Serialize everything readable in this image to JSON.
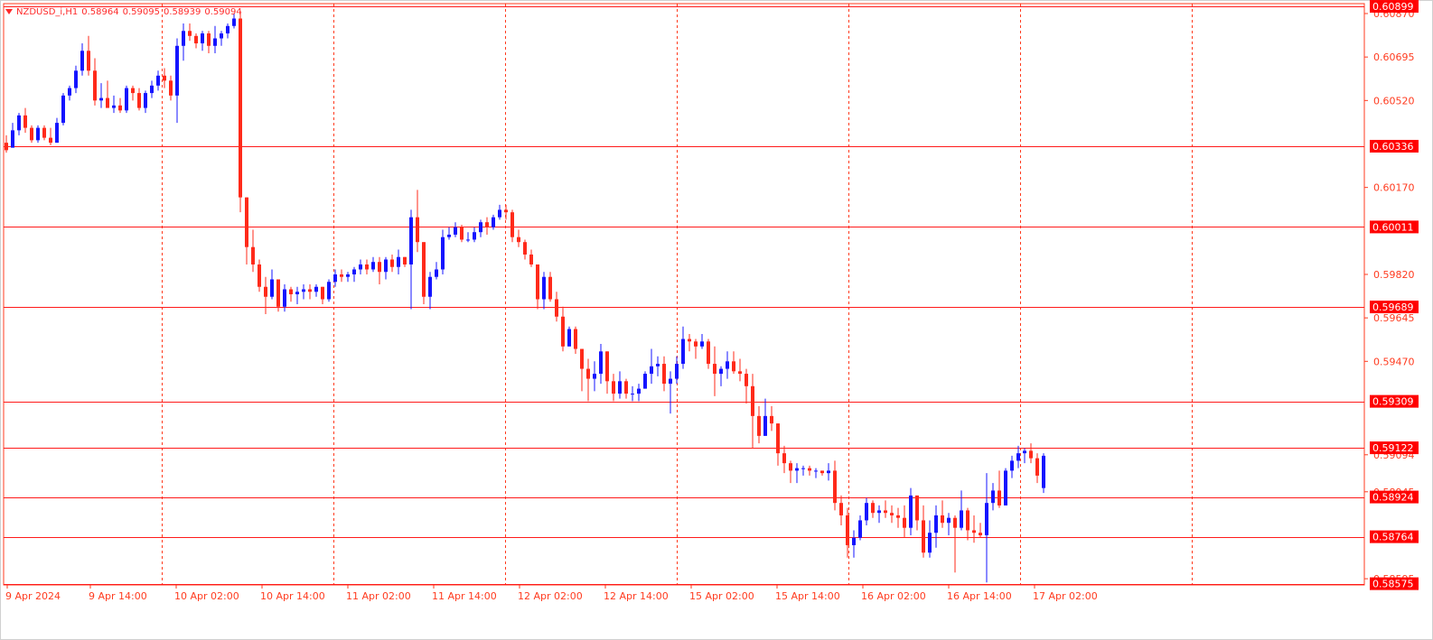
{
  "info": {
    "symbol": "NZDUSD_i,H1",
    "open": "0.58964",
    "high": "0.59095",
    "low": "0.58939",
    "close": "0.59094"
  },
  "colors": {
    "bull": "#1414ff",
    "bear": "#ff2a1a",
    "grid": "#ff3b1f",
    "axis_text": "#ff3b1f",
    "label_bg": "#ff0000",
    "label_text": "#ffffff",
    "background": "#ffffff"
  },
  "chart_data": {
    "type": "candlestick",
    "ylim": [
      0.5857,
      0.6091
    ],
    "y_ticks": [
      "0.60870",
      "0.60695",
      "0.60520",
      "0.60170",
      "0.59820",
      "0.59645",
      "0.59470",
      "0.59094",
      "0.58945",
      "0.58595"
    ],
    "x_labels": [
      "9 Apr 2024",
      "9 Apr 14:00",
      "10 Apr 02:00",
      "10 Apr 14:00",
      "11 Apr 02:00",
      "11 Apr 14:00",
      "12 Apr 02:00",
      "12 Apr 14:00",
      "15 Apr 02:00",
      "15 Apr 14:00",
      "16 Apr 02:00",
      "16 Apr 14:00",
      "17 Apr 02:00"
    ],
    "levels": [
      0.60899,
      0.60336,
      0.60011,
      0.59689,
      0.59309,
      0.59122,
      0.58924,
      0.58764,
      0.58575
    ],
    "level_labels": [
      "0.60899",
      "0.60336",
      "0.60011",
      "0.59689",
      "0.59309",
      "0.59122",
      "0.58924",
      "0.58764",
      "0.58575"
    ],
    "candles": [
      [
        0.6035,
        0.6038,
        0.6031,
        0.6032
      ],
      [
        0.6033,
        0.6043,
        0.6033,
        0.604
      ],
      [
        0.604,
        0.6047,
        0.6038,
        0.6046
      ],
      [
        0.6046,
        0.6049,
        0.6039,
        0.6041
      ],
      [
        0.6041,
        0.6042,
        0.6035,
        0.6036
      ],
      [
        0.6036,
        0.6042,
        0.6035,
        0.6041
      ],
      [
        0.6041,
        0.6042,
        0.6036,
        0.6037
      ],
      [
        0.6037,
        0.6041,
        0.6034,
        0.6035
      ],
      [
        0.6035,
        0.6045,
        0.6035,
        0.6043
      ],
      [
        0.6043,
        0.6055,
        0.6042,
        0.6054
      ],
      [
        0.6054,
        0.6058,
        0.6052,
        0.6057
      ],
      [
        0.6057,
        0.6066,
        0.6055,
        0.6064
      ],
      [
        0.6064,
        0.6075,
        0.6062,
        0.6072
      ],
      [
        0.6072,
        0.6078,
        0.6062,
        0.6064
      ],
      [
        0.6064,
        0.6069,
        0.605,
        0.6052
      ],
      [
        0.6052,
        0.6059,
        0.6049,
        0.6053
      ],
      [
        0.6053,
        0.606,
        0.605,
        0.6049
      ],
      [
        0.6049,
        0.6054,
        0.6047,
        0.605
      ],
      [
        0.605,
        0.6053,
        0.6047,
        0.6048
      ],
      [
        0.6048,
        0.6058,
        0.6047,
        0.6057
      ],
      [
        0.6057,
        0.6058,
        0.6052,
        0.6055
      ],
      [
        0.6055,
        0.6057,
        0.6048,
        0.6049
      ],
      [
        0.6049,
        0.6056,
        0.6047,
        0.6055
      ],
      [
        0.6055,
        0.606,
        0.6053,
        0.6058
      ],
      [
        0.6058,
        0.6064,
        0.6056,
        0.6062
      ],
      [
        0.6062,
        0.6065,
        0.6057,
        0.606
      ],
      [
        0.606,
        0.6062,
        0.6052,
        0.6054
      ],
      [
        0.6054,
        0.6077,
        0.6043,
        0.6074
      ],
      [
        0.6074,
        0.6083,
        0.6068,
        0.608
      ],
      [
        0.608,
        0.6083,
        0.6076,
        0.6078
      ],
      [
        0.6078,
        0.6079,
        0.6073,
        0.6075
      ],
      [
        0.6075,
        0.608,
        0.6072,
        0.6079
      ],
      [
        0.6079,
        0.608,
        0.6071,
        0.6074
      ],
      [
        0.6074,
        0.6082,
        0.6071,
        0.6077
      ],
      [
        0.6077,
        0.608,
        0.6074,
        0.6079
      ],
      [
        0.6079,
        0.6083,
        0.6077,
        0.6082
      ],
      [
        0.6082,
        0.6087,
        0.6081,
        0.6085
      ],
      [
        0.6085,
        0.6088,
        0.6007,
        0.6013
      ],
      [
        0.6013,
        0.6013,
        0.5986,
        0.5993
      ],
      [
        0.5993,
        0.6,
        0.5983,
        0.5986
      ],
      [
        0.5986,
        0.5988,
        0.5975,
        0.5977
      ],
      [
        0.5977,
        0.5981,
        0.5966,
        0.5973
      ],
      [
        0.5973,
        0.5984,
        0.5972,
        0.598
      ],
      [
        0.598,
        0.598,
        0.5967,
        0.5969
      ],
      [
        0.5969,
        0.5978,
        0.5967,
        0.5976
      ],
      [
        0.5976,
        0.5977,
        0.5971,
        0.5974
      ],
      [
        0.5974,
        0.5977,
        0.597,
        0.5975
      ],
      [
        0.5975,
        0.5978,
        0.5972,
        0.5976
      ],
      [
        0.5976,
        0.5978,
        0.5972,
        0.5975
      ],
      [
        0.5975,
        0.5978,
        0.5973,
        0.5977
      ],
      [
        0.5977,
        0.5977,
        0.597,
        0.5972
      ],
      [
        0.5972,
        0.598,
        0.5971,
        0.5979
      ],
      [
        0.5979,
        0.5984,
        0.5977,
        0.5982
      ],
      [
        0.5982,
        0.5984,
        0.5979,
        0.5981
      ],
      [
        0.5981,
        0.5983,
        0.5979,
        0.5982
      ],
      [
        0.5982,
        0.5985,
        0.5979,
        0.5984
      ],
      [
        0.5984,
        0.5988,
        0.5982,
        0.5986
      ],
      [
        0.5986,
        0.5988,
        0.5982,
        0.5984
      ],
      [
        0.5984,
        0.5989,
        0.5983,
        0.5987
      ],
      [
        0.5987,
        0.5989,
        0.5978,
        0.5983
      ],
      [
        0.5983,
        0.5989,
        0.598,
        0.5988
      ],
      [
        0.5988,
        0.599,
        0.5983,
        0.5985
      ],
      [
        0.5985,
        0.5992,
        0.5982,
        0.5989
      ],
      [
        0.5989,
        0.5989,
        0.5985,
        0.5986
      ],
      [
        0.5986,
        0.6008,
        0.5968,
        0.6005
      ],
      [
        0.6005,
        0.6016,
        0.5991,
        0.5995
      ],
      [
        0.5995,
        0.5995,
        0.597,
        0.5973
      ],
      [
        0.5973,
        0.5983,
        0.5968,
        0.5981
      ],
      [
        0.5981,
        0.5987,
        0.598,
        0.5984
      ],
      [
        0.5984,
        0.6,
        0.5982,
        0.5997
      ],
      [
        0.5997,
        0.6001,
        0.5996,
        0.5998
      ],
      [
        0.5998,
        0.6003,
        0.5997,
        0.6001
      ],
      [
        0.6001,
        0.6002,
        0.5995,
        0.5996
      ],
      [
        0.5996,
        0.5999,
        0.5995,
        0.5996
      ],
      [
        0.5996,
        0.6001,
        0.5995,
        0.5999
      ],
      [
        0.5999,
        0.6004,
        0.5997,
        0.6003
      ],
      [
        0.6003,
        0.6005,
        0.5998,
        0.6001
      ],
      [
        0.6001,
        0.6006,
        0.6,
        0.6005
      ],
      [
        0.6005,
        0.601,
        0.6004,
        0.6008
      ],
      [
        0.6008,
        0.601,
        0.6004,
        0.6007
      ],
      [
        0.6007,
        0.6008,
        0.5995,
        0.5997
      ],
      [
        0.5997,
        0.6,
        0.5993,
        0.5995
      ],
      [
        0.5995,
        0.5996,
        0.5988,
        0.599
      ],
      [
        0.599,
        0.5992,
        0.5985,
        0.5986
      ],
      [
        0.5986,
        0.5986,
        0.5968,
        0.5972
      ],
      [
        0.5972,
        0.5983,
        0.5968,
        0.5981
      ],
      [
        0.5981,
        0.5983,
        0.5971,
        0.5972
      ],
      [
        0.5972,
        0.5975,
        0.5963,
        0.5965
      ],
      [
        0.5965,
        0.5969,
        0.5951,
        0.5953
      ],
      [
        0.5953,
        0.5961,
        0.5953,
        0.596
      ],
      [
        0.596,
        0.5961,
        0.595,
        0.5952
      ],
      [
        0.5952,
        0.5952,
        0.5935,
        0.5944
      ],
      [
        0.5944,
        0.5948,
        0.5931,
        0.594
      ],
      [
        0.594,
        0.5947,
        0.5935,
        0.5942
      ],
      [
        0.5942,
        0.5954,
        0.5938,
        0.5951
      ],
      [
        0.5951,
        0.5951,
        0.5934,
        0.5939
      ],
      [
        0.5939,
        0.5942,
        0.5931,
        0.5934
      ],
      [
        0.5934,
        0.5943,
        0.5932,
        0.5939
      ],
      [
        0.5939,
        0.594,
        0.5932,
        0.5934
      ],
      [
        0.5934,
        0.5937,
        0.5931,
        0.5934
      ],
      [
        0.5934,
        0.5938,
        0.5931,
        0.5936
      ],
      [
        0.5936,
        0.5943,
        0.5936,
        0.5942
      ],
      [
        0.5942,
        0.5952,
        0.5938,
        0.5945
      ],
      [
        0.5945,
        0.5949,
        0.5941,
        0.5946
      ],
      [
        0.5946,
        0.5949,
        0.5935,
        0.5938
      ],
      [
        0.5938,
        0.5943,
        0.5926,
        0.594
      ],
      [
        0.594,
        0.5949,
        0.5938,
        0.5946
      ],
      [
        0.5946,
        0.5961,
        0.5944,
        0.5956
      ],
      [
        0.5956,
        0.5958,
        0.5951,
        0.5955
      ],
      [
        0.5955,
        0.5956,
        0.5948,
        0.5953
      ],
      [
        0.5953,
        0.5958,
        0.5952,
        0.5955
      ],
      [
        0.5955,
        0.5956,
        0.5944,
        0.5946
      ],
      [
        0.5946,
        0.5953,
        0.5933,
        0.5942
      ],
      [
        0.5942,
        0.5945,
        0.5937,
        0.5944
      ],
      [
        0.5944,
        0.5951,
        0.594,
        0.5947
      ],
      [
        0.5947,
        0.5951,
        0.5942,
        0.5943
      ],
      [
        0.5943,
        0.5948,
        0.5939,
        0.5942
      ],
      [
        0.5942,
        0.5944,
        0.593,
        0.5937
      ],
      [
        0.5937,
        0.5942,
        0.5912,
        0.5925
      ],
      [
        0.5925,
        0.5929,
        0.5914,
        0.5917
      ],
      [
        0.5917,
        0.5932,
        0.5917,
        0.5925
      ],
      [
        0.5925,
        0.5929,
        0.5919,
        0.5922
      ],
      [
        0.5922,
        0.5922,
        0.5905,
        0.591
      ],
      [
        0.591,
        0.5913,
        0.5902,
        0.5906
      ],
      [
        0.5906,
        0.5907,
        0.5898,
        0.5903
      ],
      [
        0.5903,
        0.5906,
        0.5898,
        0.5904
      ],
      [
        0.5904,
        0.5905,
        0.5901,
        0.5904
      ],
      [
        0.5904,
        0.5905,
        0.5901,
        0.5903
      ],
      [
        0.5903,
        0.5904,
        0.59,
        0.5903
      ],
      [
        0.5903,
        0.5903,
        0.5901,
        0.5902
      ],
      [
        0.5902,
        0.5906,
        0.5899,
        0.5903
      ],
      [
        0.5903,
        0.5907,
        0.5887,
        0.589
      ],
      [
        0.589,
        0.5893,
        0.5881,
        0.5885
      ],
      [
        0.5885,
        0.5888,
        0.5868,
        0.5873
      ],
      [
        0.5873,
        0.5879,
        0.5868,
        0.5876
      ],
      [
        0.5876,
        0.5885,
        0.5875,
        0.5883
      ],
      [
        0.5883,
        0.5892,
        0.5881,
        0.589
      ],
      [
        0.589,
        0.5891,
        0.5884,
        0.5886
      ],
      [
        0.5886,
        0.5889,
        0.5882,
        0.5887
      ],
      [
        0.5887,
        0.5891,
        0.5884,
        0.5886
      ],
      [
        0.5886,
        0.5889,
        0.5882,
        0.5885
      ],
      [
        0.5885,
        0.5888,
        0.588,
        0.5884
      ],
      [
        0.5884,
        0.5889,
        0.5876,
        0.588
      ],
      [
        0.588,
        0.5896,
        0.5877,
        0.5893
      ],
      [
        0.5893,
        0.5893,
        0.5879,
        0.5883
      ],
      [
        0.5883,
        0.5889,
        0.5868,
        0.587
      ],
      [
        0.587,
        0.5883,
        0.5868,
        0.5878
      ],
      [
        0.5878,
        0.5889,
        0.5872,
        0.5885
      ],
      [
        0.5885,
        0.5891,
        0.588,
        0.5882
      ],
      [
        0.5882,
        0.5886,
        0.5877,
        0.5884
      ],
      [
        0.5884,
        0.5885,
        0.5862,
        0.588
      ],
      [
        0.588,
        0.5895,
        0.5879,
        0.5887
      ],
      [
        0.5887,
        0.5888,
        0.5875,
        0.5879
      ],
      [
        0.5879,
        0.5885,
        0.5874,
        0.5878
      ],
      [
        0.5878,
        0.5882,
        0.5876,
        0.5877
      ],
      [
        0.5877,
        0.5902,
        0.5858,
        0.589
      ],
      [
        0.589,
        0.5898,
        0.5887,
        0.5895
      ],
      [
        0.5895,
        0.5903,
        0.5888,
        0.5889
      ],
      [
        0.5889,
        0.5904,
        0.5889,
        0.5903
      ],
      [
        0.5903,
        0.5909,
        0.59,
        0.5907
      ],
      [
        0.5907,
        0.5913,
        0.5904,
        0.591
      ],
      [
        0.591,
        0.5912,
        0.5906,
        0.5911
      ],
      [
        0.5911,
        0.5914,
        0.5906,
        0.5908
      ],
      [
        0.5908,
        0.591,
        0.5898,
        0.5901
      ],
      [
        0.5896,
        0.591,
        0.5894,
        0.5909
      ]
    ]
  }
}
